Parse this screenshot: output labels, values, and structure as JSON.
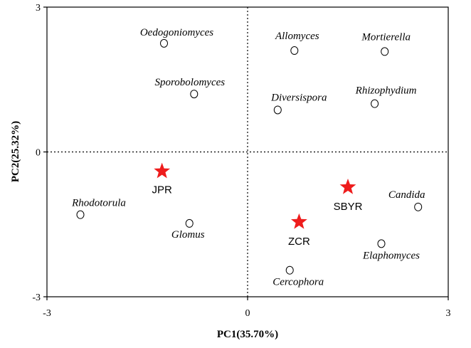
{
  "chart_data": {
    "type": "scatter",
    "xlabel": "PC1(35.70%)",
    "ylabel": "PC2(25.32%)",
    "xlim": [
      -3,
      3
    ],
    "ylim": [
      -3,
      3
    ],
    "x_ticks": [
      "-3",
      "0",
      "3"
    ],
    "y_ticks": [
      "-3",
      "0",
      "3"
    ],
    "genera": [
      {
        "label": "Oedogoniomyces",
        "x": -1.25,
        "y": 2.25
      },
      {
        "label": "Allomyces",
        "x": 0.7,
        "y": 2.1
      },
      {
        "label": "Mortierella",
        "x": 2.05,
        "y": 2.08
      },
      {
        "label": "Sporobolomyces",
        "x": -0.8,
        "y": 1.2
      },
      {
        "label": "Diversispora",
        "x": 0.45,
        "y": 0.87
      },
      {
        "label": "Rhizophydium",
        "x": 1.9,
        "y": 1.0
      },
      {
        "label": "Rhodotorula",
        "x": -2.5,
        "y": -1.3
      },
      {
        "label": "Glomus",
        "x": -0.87,
        "y": -1.48
      },
      {
        "label": "Candida",
        "x": 2.55,
        "y": -1.14
      },
      {
        "label": "Elaphomyces",
        "x": 2.0,
        "y": -1.9
      },
      {
        "label": "Cercophora",
        "x": 0.63,
        "y": -2.45
      }
    ],
    "sites": [
      {
        "label": "JPR",
        "x": -1.28,
        "y": -0.4
      },
      {
        "label": "SBYR",
        "x": 1.5,
        "y": -0.73
      },
      {
        "label": "ZCR",
        "x": 0.77,
        "y": -1.45
      }
    ],
    "colors": {
      "site_marker": "#ee1c1c",
      "genus_marker": "#000000"
    }
  }
}
